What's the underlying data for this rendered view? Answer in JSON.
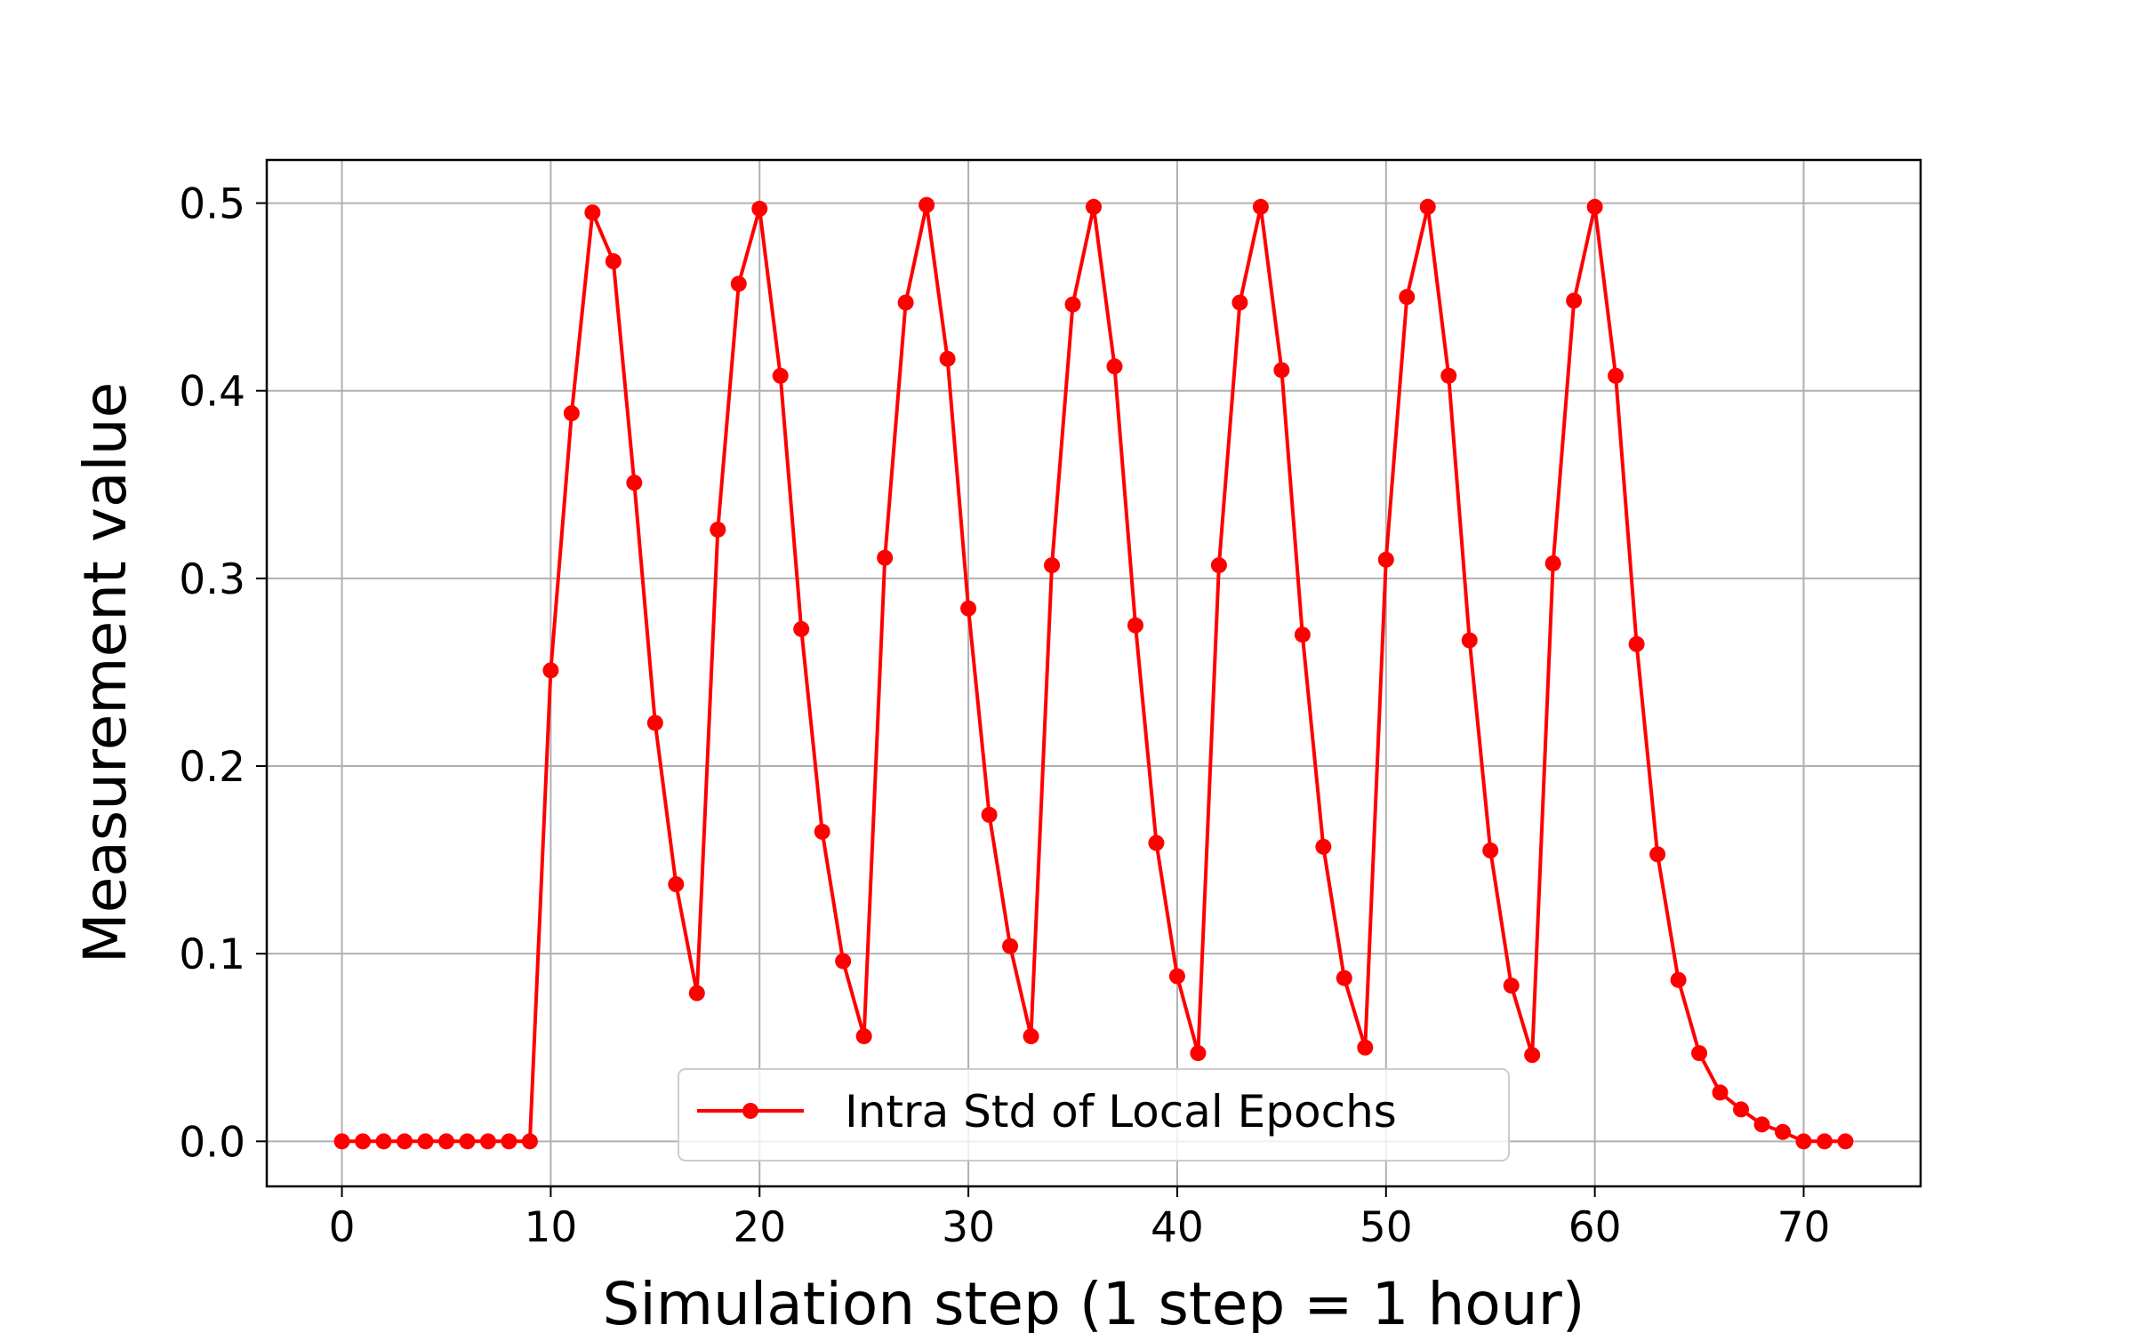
{
  "chart_data": {
    "type": "line",
    "title": "",
    "xlabel": "Simulation step (1 step = 1 hour)",
    "ylabel": "Measurement value",
    "xlim": [
      -3.6,
      75.6
    ],
    "ylim": [
      -0.024,
      0.523
    ],
    "xticks": [
      0,
      10,
      20,
      30,
      40,
      50,
      60,
      70
    ],
    "xtick_labels": [
      "0",
      "10",
      "20",
      "30",
      "40",
      "50",
      "60",
      "70"
    ],
    "yticks": [
      0.0,
      0.1,
      0.2,
      0.3,
      0.4,
      0.5
    ],
    "ytick_labels": [
      "0.0",
      "0.1",
      "0.2",
      "0.3",
      "0.4",
      "0.5"
    ],
    "grid": true,
    "legend": {
      "placement": "lower-center"
    },
    "series": [
      {
        "name": "Intra Std of Local Epochs",
        "color": "#ff0000",
        "marker": "circle",
        "x": [
          0,
          1,
          2,
          3,
          4,
          5,
          6,
          7,
          8,
          9,
          10,
          11,
          12,
          13,
          14,
          15,
          16,
          17,
          18,
          19,
          20,
          21,
          22,
          23,
          24,
          25,
          26,
          27,
          28,
          29,
          30,
          31,
          32,
          33,
          34,
          35,
          36,
          37,
          38,
          39,
          40,
          41,
          42,
          43,
          44,
          45,
          46,
          47,
          48,
          49,
          50,
          51,
          52,
          53,
          54,
          55,
          56,
          57,
          58,
          59,
          60,
          61,
          62,
          63,
          64,
          65,
          66,
          67,
          68,
          69,
          70,
          71,
          72
        ],
        "y": [
          0,
          0,
          0,
          0,
          0,
          0,
          0,
          0,
          0,
          0,
          0.251,
          0.388,
          0.495,
          0.469,
          0.351,
          0.223,
          0.137,
          0.079,
          0.326,
          0.457,
          0.497,
          0.408,
          0.273,
          0.165,
          0.096,
          0.056,
          0.311,
          0.447,
          0.499,
          0.417,
          0.284,
          0.174,
          0.104,
          0.056,
          0.307,
          0.446,
          0.498,
          0.413,
          0.275,
          0.159,
          0.088,
          0.047,
          0.307,
          0.447,
          0.498,
          0.411,
          0.27,
          0.157,
          0.087,
          0.05,
          0.31,
          0.45,
          0.498,
          0.408,
          0.267,
          0.155,
          0.083,
          0.046,
          0.308,
          0.448,
          0.498,
          0.408,
          0.265,
          0.153,
          0.086,
          0.047,
          0.026,
          0.017,
          0.009,
          0.005,
          0,
          0,
          0
        ]
      }
    ]
  }
}
